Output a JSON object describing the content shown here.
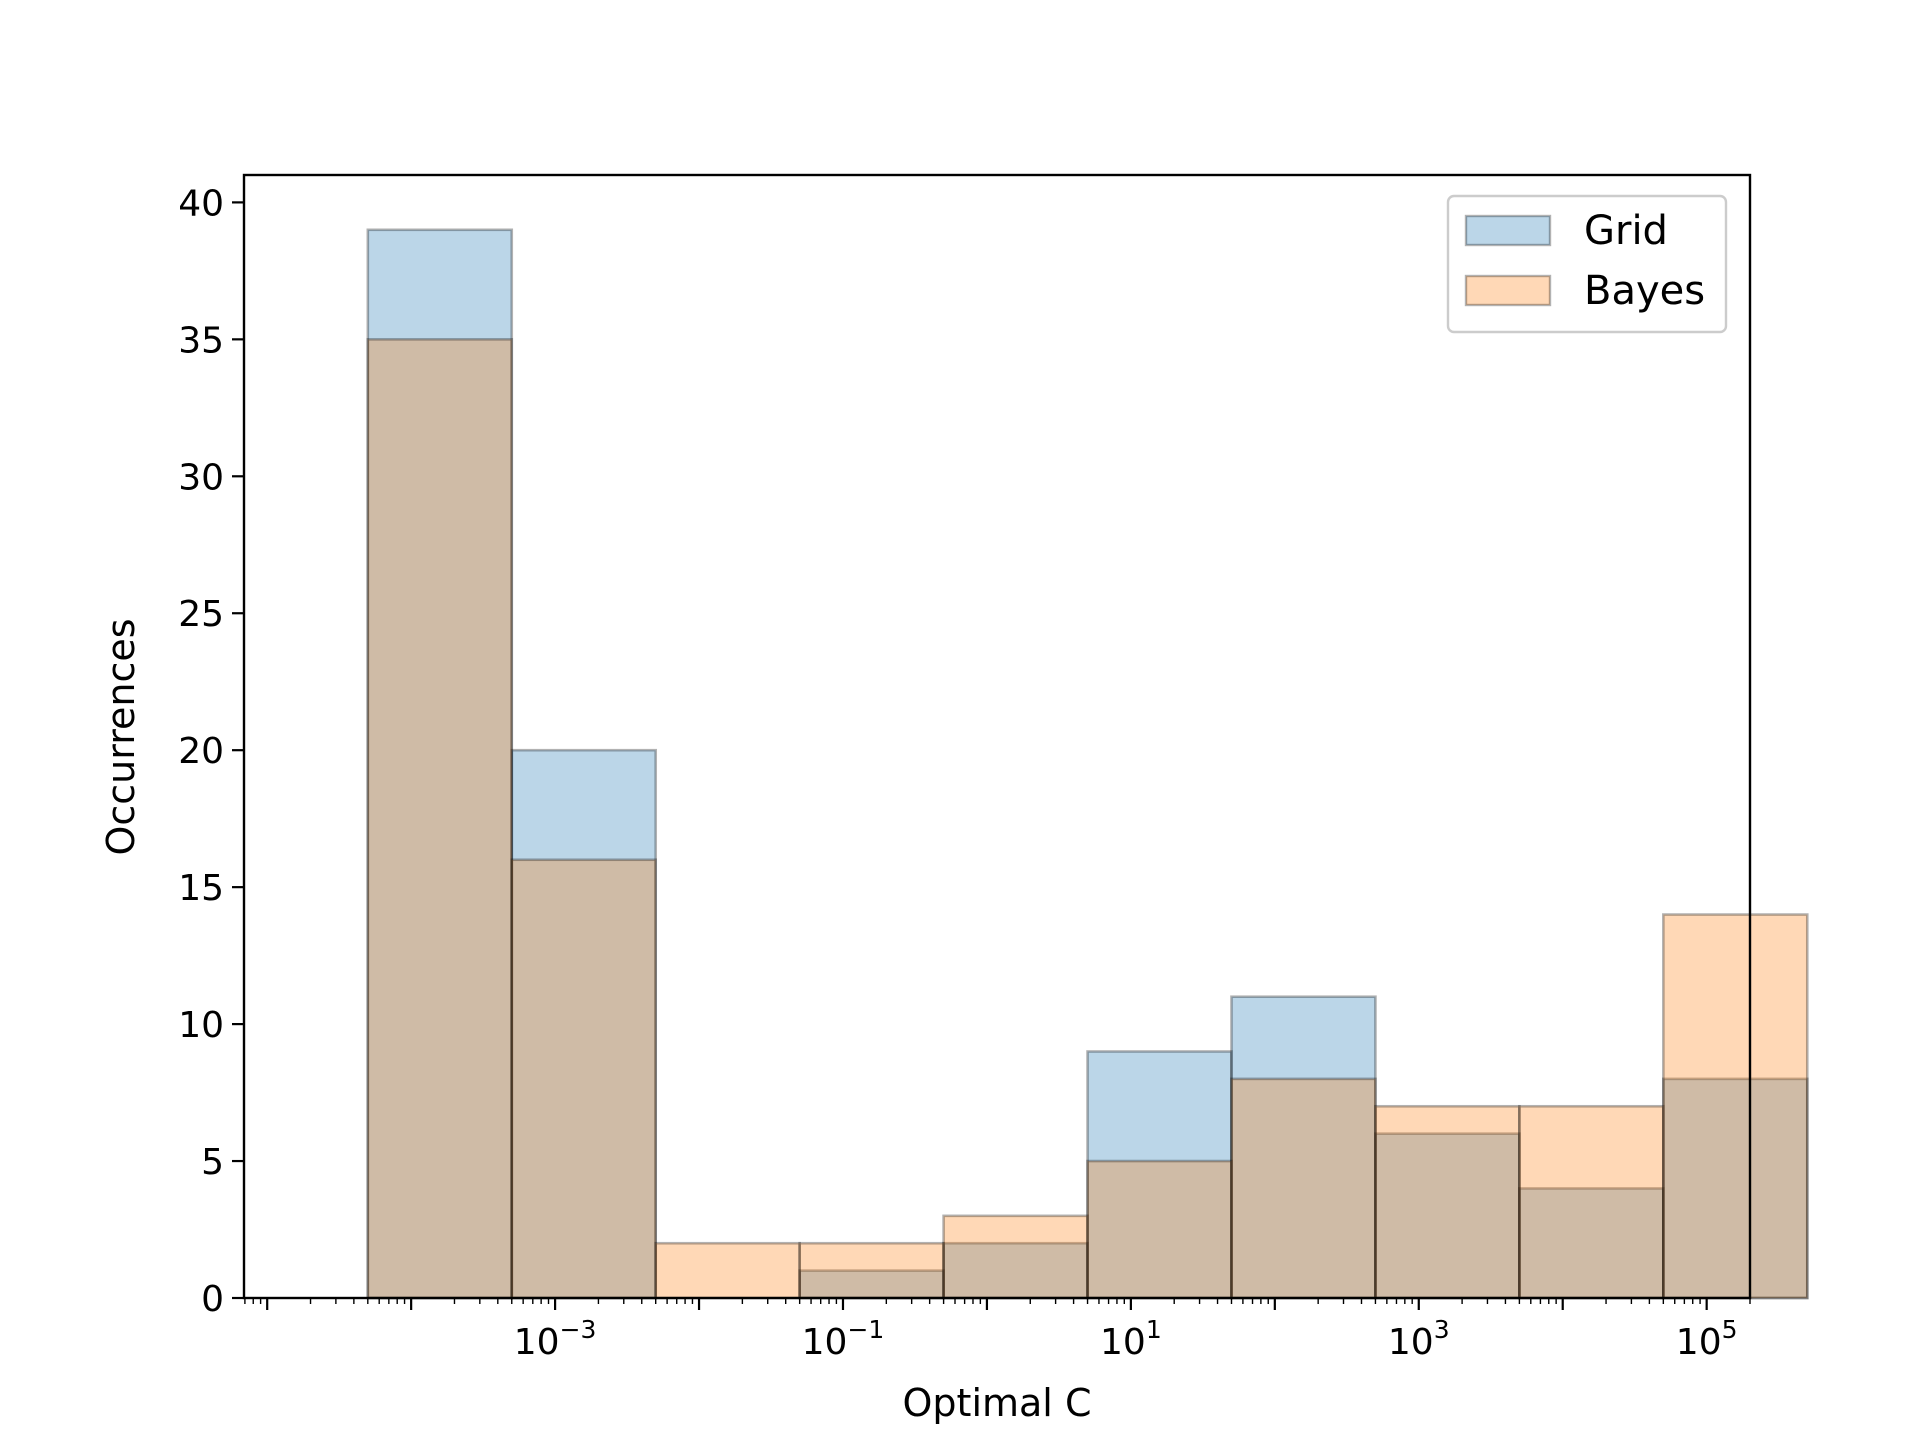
{
  "chart_data": {
    "type": "bar",
    "xlabel": "Optimal C",
    "ylabel": "Occurrences",
    "xscale": "log",
    "xlim": [
      6.9e-06,
      200000
    ],
    "ylim": [
      0,
      41
    ],
    "grid": false,
    "legend_position": "top-right",
    "x_ticks": [
      {
        "base": "10",
        "exp": "−3",
        "value": 0.001
      },
      {
        "base": "10",
        "exp": "−1",
        "value": 0.1
      },
      {
        "base": "10",
        "exp": "1",
        "value": 10
      },
      {
        "base": "10",
        "exp": "3",
        "value": 1000
      },
      {
        "base": "10",
        "exp": "5",
        "value": 100000
      }
    ],
    "y_ticks": [
      "0",
      "5",
      "10",
      "15",
      "20",
      "25",
      "30",
      "35",
      "40"
    ],
    "series": [
      {
        "name": "Grid",
        "color": "#1f77b4",
        "bin_edges": [
          5e-05,
          0.0005,
          0.005,
          0.05,
          0.5,
          5,
          50,
          500,
          5000,
          50000,
          500000
        ],
        "values": [
          39,
          20,
          0,
          1,
          2,
          9,
          11,
          6,
          4,
          8
        ]
      },
      {
        "name": "Bayes",
        "color": "#ff7f0e",
        "bin_edges": [
          5e-05,
          0.0005,
          0.005,
          0.05,
          0.5,
          5,
          50,
          500,
          5000,
          50000,
          500000
        ],
        "values": [
          35,
          16,
          2,
          2,
          3,
          5,
          8,
          7,
          7,
          14
        ]
      }
    ]
  }
}
